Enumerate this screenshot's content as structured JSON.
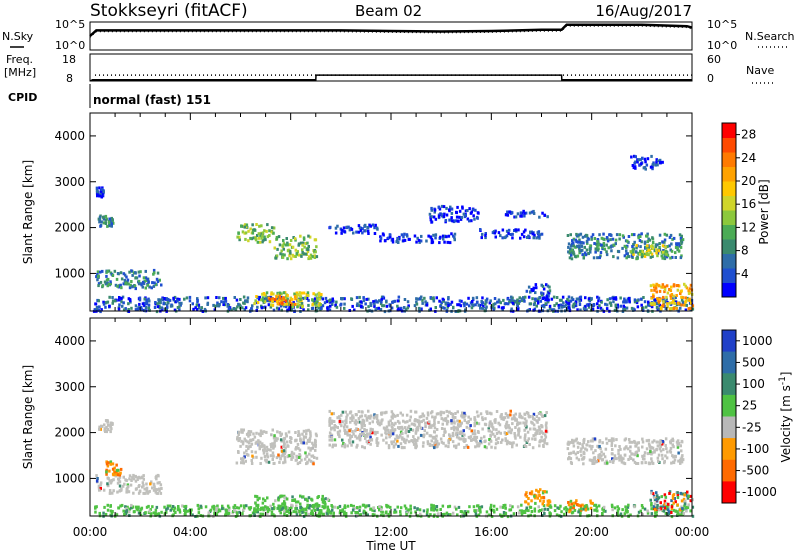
{
  "header": {
    "station": "Stokkseyri (fitACF)",
    "beam": "Beam 02",
    "date": "16/Aug/2017"
  },
  "nsky": {
    "label": "N.Sky",
    "tick_top": "10^5",
    "tick_bottom": "10^0",
    "right_label": "N.Search",
    "right_tick_top": "10^5",
    "right_tick_bottom": "10^0"
  },
  "freq": {
    "label_line1": "Freq.",
    "label_line2": "[MHz]",
    "tick_top": "18",
    "tick_bottom": "8",
    "right_label": "Nave",
    "right_tick_top": "60",
    "right_tick_bottom": "0"
  },
  "cpid": {
    "label": "CPID",
    "value": "normal (fast) 151"
  },
  "power_colorbar": {
    "label": "Power [dB]",
    "ticks": [
      "4",
      "8",
      "12",
      "16",
      "20",
      "24",
      "28"
    ],
    "colors": [
      "#0000ff",
      "#1f4fd0",
      "#2e6da8",
      "#3a8a6e",
      "#4bab55",
      "#8cc83c",
      "#cfd52a",
      "#ffc800",
      "#ffa200",
      "#ff7a00",
      "#ff4a00",
      "#ff0000"
    ]
  },
  "velocity_colorbar": {
    "label": "Velocity [m s^-1]",
    "ticks": [
      "1000",
      "500",
      "100",
      "25",
      "-25",
      "-100",
      "-500",
      "-1000"
    ],
    "colors": [
      "#2040c8",
      "#2e6da8",
      "#3a8a6e",
      "#4fc243",
      "#b8b8b8",
      "#ff9a00",
      "#ff6a00",
      "#ff0000"
    ]
  },
  "ground_scatter_color": "#c0c0bc",
  "chart_data": [
    {
      "type": "line",
      "name": "N.Sky / N.Search noise",
      "x": [
        0,
        0.25,
        2,
        4,
        6,
        8,
        10,
        12,
        14,
        16,
        18,
        18.8,
        19,
        20,
        22,
        23.8,
        24
      ],
      "values": [
        0.5,
        0.7,
        0.7,
        0.7,
        0.7,
        0.7,
        0.7,
        0.68,
        0.66,
        0.68,
        0.72,
        0.72,
        0.9,
        0.9,
        0.9,
        0.85,
        0.8
      ]
    },
    {
      "type": "line",
      "name": "Frequency",
      "x": [
        0,
        0.1,
        9,
        9.01,
        18.8,
        18.81,
        24
      ],
      "y_mhz": [
        8,
        8.5,
        8.5,
        10.2,
        10.2,
        8.5,
        8.5
      ],
      "nave_level": 13
    },
    {
      "type": "heatmap",
      "name": "Power [dB]",
      "x_range_hours": [
        0,
        24
      ],
      "y_range_km": [
        180,
        4500
      ],
      "xlabel": "Time UT",
      "ylabel": "Slant Range [km]",
      "x_ticks": [
        "00:00",
        "04:00",
        "08:00",
        "12:00",
        "16:00",
        "20:00",
        "00:00"
      ],
      "y_ticks": [
        1000,
        2000,
        3000,
        4000
      ],
      "regions": [
        {
          "t0": 0.1,
          "t1": 24,
          "r0": 200,
          "r1": 520,
          "level": 2
        },
        {
          "t0": 6.5,
          "t1": 9.2,
          "r0": 300,
          "r1": 620,
          "level": 6
        },
        {
          "t0": 7.0,
          "t1": 8.3,
          "r0": 350,
          "r1": 550,
          "level": 9
        },
        {
          "t0": 0.2,
          "t1": 2.8,
          "r0": 700,
          "r1": 1100,
          "level": 3
        },
        {
          "t0": 0.3,
          "t1": 0.9,
          "r0": 2050,
          "r1": 2300,
          "level": 3
        },
        {
          "t0": 0.2,
          "t1": 0.5,
          "r0": 2700,
          "r1": 2900,
          "level": 1
        },
        {
          "t0": 5.8,
          "t1": 7.3,
          "r0": 1700,
          "r1": 2100,
          "level": 5
        },
        {
          "t0": 7.3,
          "t1": 9.0,
          "r0": 1350,
          "r1": 1850,
          "level": 5
        },
        {
          "t0": 9.5,
          "t1": 11.5,
          "r0": 1900,
          "r1": 2100,
          "level": 1
        },
        {
          "t0": 11.5,
          "t1": 14.5,
          "r0": 1700,
          "r1": 1900,
          "level": 1
        },
        {
          "t0": 13.5,
          "t1": 15.5,
          "r0": 2150,
          "r1": 2500,
          "level": 1
        },
        {
          "t0": 15.5,
          "t1": 18.0,
          "r0": 1800,
          "r1": 2000,
          "level": 1
        },
        {
          "t0": 16.5,
          "t1": 18.2,
          "r0": 2250,
          "r1": 2400,
          "level": 1
        },
        {
          "t0": 19.0,
          "t1": 23.6,
          "r0": 1350,
          "r1": 1900,
          "level": 3
        },
        {
          "t0": 21.5,
          "t1": 23.0,
          "r0": 1400,
          "r1": 1650,
          "level": 6
        },
        {
          "t0": 22.3,
          "t1": 24.0,
          "r0": 250,
          "r1": 800,
          "level": 8
        },
        {
          "t0": 17.3,
          "t1": 18.3,
          "r0": 450,
          "r1": 800,
          "level": 2
        },
        {
          "t0": 21.5,
          "t1": 22.8,
          "r0": 3300,
          "r1": 3600,
          "level": 1
        }
      ]
    },
    {
      "type": "heatmap",
      "name": "Velocity [m s^-1]",
      "x_range_hours": [
        0,
        24
      ],
      "y_range_km": [
        180,
        4500
      ],
      "xlabel": "Time UT",
      "ylabel": "Slant Range [km]",
      "x_ticks": [
        "00:00",
        "04:00",
        "08:00",
        "12:00",
        "16:00",
        "20:00",
        "00:00"
      ],
      "y_ticks": [
        1000,
        2000,
        3000,
        4000
      ],
      "regions": [
        {
          "t0": 0.1,
          "t1": 24,
          "r0": 200,
          "r1": 450,
          "cls": "green"
        },
        {
          "t0": 6.5,
          "t1": 9.5,
          "r0": 300,
          "r1": 650,
          "cls": "green"
        },
        {
          "t0": 0.2,
          "t1": 2.8,
          "r0": 700,
          "r1": 1100,
          "cls": "ground"
        },
        {
          "t0": 0.3,
          "t1": 0.9,
          "r0": 2050,
          "r1": 2300,
          "cls": "ground"
        },
        {
          "t0": 5.8,
          "t1": 9.0,
          "r0": 1350,
          "r1": 2100,
          "cls": "ground"
        },
        {
          "t0": 9.5,
          "t1": 18.2,
          "r0": 1700,
          "r1": 2500,
          "cls": "ground"
        },
        {
          "t0": 19.0,
          "t1": 23.6,
          "r0": 1350,
          "r1": 1900,
          "cls": "ground"
        },
        {
          "t0": 17.3,
          "t1": 18.3,
          "r0": 450,
          "r1": 800,
          "cls": "orange"
        },
        {
          "t0": 19.0,
          "t1": 20.0,
          "r0": 300,
          "r1": 550,
          "cls": "orange"
        },
        {
          "t0": 22.3,
          "t1": 24.0,
          "r0": 250,
          "r1": 750,
          "cls": "mixed"
        },
        {
          "t0": 0.6,
          "t1": 1.2,
          "r0": 1100,
          "r1": 1400,
          "cls": "orange"
        }
      ]
    }
  ]
}
